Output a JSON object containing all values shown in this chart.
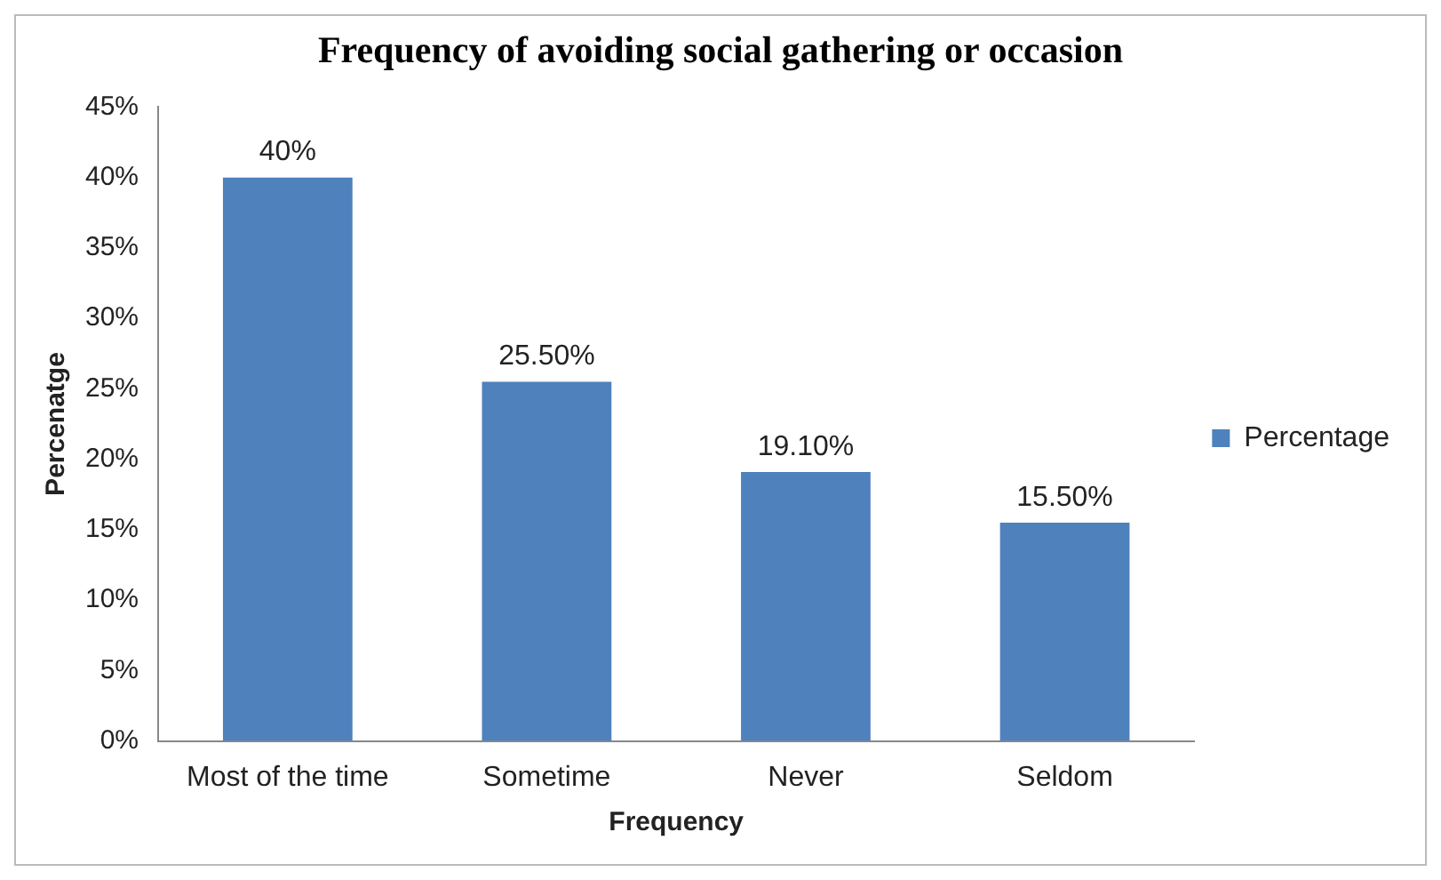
{
  "chart_data": {
    "type": "bar",
    "title": "Frequency of avoiding social gathering or occasion",
    "xlabel": "Frequency",
    "ylabel": "Percenatge",
    "categories": [
      "Most of the time",
      "Sometime",
      "Never",
      "Seldom"
    ],
    "series": [
      {
        "name": "Percentage",
        "color": "#4f81bd",
        "values": [
          40,
          25.5,
          19.1,
          15.5
        ],
        "value_labels": [
          "40%",
          "25.50%",
          "19.10%",
          "15.50%"
        ]
      }
    ],
    "ylim": [
      0,
      45
    ],
    "yticks": [
      {
        "value": 0,
        "label": "0%"
      },
      {
        "value": 5,
        "label": "5%"
      },
      {
        "value": 10,
        "label": "10%"
      },
      {
        "value": 15,
        "label": "15%"
      },
      {
        "value": 20,
        "label": "20%"
      },
      {
        "value": 25,
        "label": "25%"
      },
      {
        "value": 30,
        "label": "30%"
      },
      {
        "value": 35,
        "label": "35%"
      },
      {
        "value": 40,
        "label": "40%"
      },
      {
        "value": 45,
        "label": "45%"
      }
    ],
    "grid": false,
    "legend": "right"
  }
}
